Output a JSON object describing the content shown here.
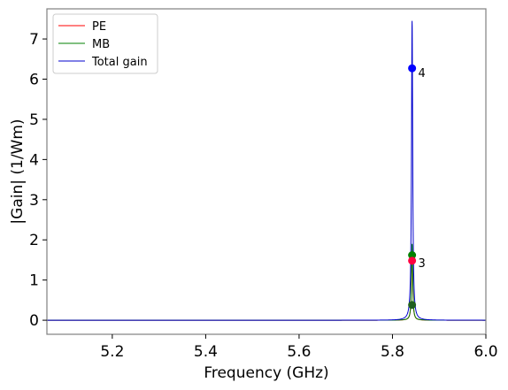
{
  "chart_data": {
    "type": "line",
    "title": "",
    "xlabel": "Frequency (GHz)",
    "ylabel": "|Gain| (1/Wm)",
    "xlim": [
      5.06,
      6.0
    ],
    "ylim": [
      -0.35,
      7.75
    ],
    "xticks": [
      "5.2",
      "5.4",
      "5.6",
      "5.8",
      "6.0"
    ],
    "yticks": [
      "0",
      "1",
      "2",
      "3",
      "4",
      "5",
      "6",
      "7"
    ],
    "grid": false,
    "legend_position": "top-left",
    "resonance": {
      "center": 5.842,
      "width": 0.0015
    },
    "series": [
      {
        "name": "PE",
        "color": "#ff0000",
        "peak": 1.75
      },
      {
        "name": "MB",
        "color": "#008000",
        "peak": 1.9
      },
      {
        "name": "Total gain",
        "color": "#0000cc",
        "peak": 7.45
      }
    ],
    "markers": [
      {
        "x": 5.842,
        "y": 6.27,
        "color": "#0000ff"
      },
      {
        "x": 5.842,
        "y": 1.62,
        "color": "#008000"
      },
      {
        "x": 5.842,
        "y": 1.48,
        "color": "#ff0040"
      },
      {
        "x": 5.842,
        "y": 0.38,
        "color": "#1f5f1f"
      }
    ],
    "annotations": [
      {
        "text": "4",
        "x": 5.855,
        "y": 6.05
      },
      {
        "text": "3",
        "x": 5.855,
        "y": 1.32
      }
    ]
  }
}
